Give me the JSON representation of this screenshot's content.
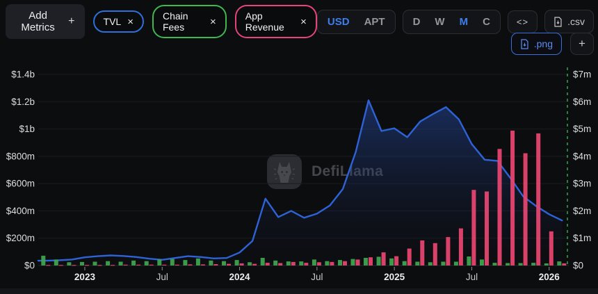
{
  "header": {
    "add_metrics": {
      "label": "Add Metrics",
      "plus_glyph": "+"
    },
    "close_glyph": "×",
    "metrics": [
      {
        "label": "TVL",
        "color": "#2f6fdb"
      },
      {
        "label": "Chain Fees",
        "color": "#3fb84f"
      },
      {
        "label": "App Revenue",
        "color": "#e7447a"
      }
    ],
    "currency_toggle": {
      "options": [
        "USD",
        "APT"
      ],
      "active": "USD"
    },
    "interval_toggle": {
      "options": [
        "D",
        "W",
        "M",
        "C"
      ],
      "active": "M"
    },
    "embed_label": "<>",
    "csv_label": ".csv",
    "png_label": ".png",
    "add_chart_glyph": "+"
  },
  "watermark": {
    "text": "DefiLlama"
  },
  "chart_data": {
    "type": "mixed-line-bar",
    "title": "",
    "x_unit": "month",
    "months": [
      "2022-10",
      "2022-11",
      "2022-12",
      "2023-01",
      "2023-02",
      "2023-03",
      "2023-04",
      "2023-05",
      "2023-06",
      "2023-07",
      "2023-08",
      "2023-09",
      "2023-10",
      "2023-11",
      "2023-12",
      "2024-01",
      "2024-02",
      "2024-03",
      "2024-04",
      "2024-05",
      "2024-06",
      "2024-07",
      "2024-08",
      "2024-09",
      "2024-10",
      "2024-11",
      "2024-12",
      "2025-01",
      "2025-02",
      "2025-03",
      "2025-04",
      "2025-05",
      "2025-06",
      "2025-07",
      "2025-08",
      "2025-09",
      "2025-10",
      "2025-11",
      "2025-12",
      "2026-01",
      "2026-02"
    ],
    "series": [
      {
        "name": "TVL",
        "type": "area-line",
        "axis": "left",
        "color": "#2e63d8",
        "values_musd": [
          35,
          38,
          44,
          60,
          68,
          74,
          70,
          62,
          50,
          42,
          55,
          68,
          62,
          52,
          55,
          95,
          180,
          490,
          355,
          400,
          350,
          380,
          440,
          560,
          830,
          1210,
          985,
          1005,
          940,
          1055,
          1110,
          1160,
          1070,
          890,
          775,
          766,
          640,
          505,
          435,
          375,
          330
        ]
      },
      {
        "name": "Chain Fees",
        "type": "bar",
        "axis": "right",
        "color": "#3fa34f",
        "values_musd": [
          0.36,
          0.22,
          0.12,
          0.13,
          0.14,
          0.16,
          0.14,
          0.18,
          0.16,
          0.22,
          0.24,
          0.2,
          0.26,
          0.18,
          0.16,
          0.2,
          0.12,
          0.28,
          0.18,
          0.15,
          0.15,
          0.22,
          0.16,
          0.2,
          0.24,
          0.28,
          0.32,
          0.26,
          0.16,
          0.14,
          0.12,
          0.14,
          0.14,
          0.33,
          0.22,
          0.1,
          0.09,
          0.09,
          0.1,
          0.08,
          0.15
        ]
      },
      {
        "name": "App Revenue",
        "type": "bar",
        "axis": "right",
        "color": "#e5456f",
        "values_musd": [
          0.02,
          0.02,
          0.02,
          0.02,
          0.02,
          0.02,
          0.03,
          0.03,
          0.03,
          0.03,
          0.03,
          0.04,
          0.04,
          0.05,
          0.06,
          0.08,
          0.06,
          0.1,
          0.09,
          0.13,
          0.1,
          0.12,
          0.13,
          0.16,
          0.22,
          0.3,
          0.48,
          0.34,
          0.62,
          0.92,
          0.82,
          1.04,
          1.36,
          2.77,
          2.71,
          4.27,
          4.94,
          4.11,
          4.84,
          1.25,
          0.08
        ]
      }
    ],
    "left_axis": {
      "ticks": [
        "$1.4b",
        "$1.2b",
        "$1b",
        "$800m",
        "$600m",
        "$400m",
        "$200m",
        "$0"
      ],
      "range_usd": [
        0,
        1400000000
      ]
    },
    "right_axis": {
      "ticks": [
        "$7m",
        "$6m",
        "$5m",
        "$4m",
        "$3m",
        "$2m",
        "$1m",
        "$0"
      ],
      "range_usd": [
        0,
        7000000
      ]
    },
    "x_ticks": [
      {
        "label": "2023",
        "month_index": 3,
        "bold": true
      },
      {
        "label": "Jul",
        "month_index": 9,
        "bold": false
      },
      {
        "label": "2024",
        "month_index": 15,
        "bold": true
      },
      {
        "label": "Jul",
        "month_index": 21,
        "bold": false
      },
      {
        "label": "2025",
        "month_index": 27,
        "bold": true
      },
      {
        "label": "Jul",
        "month_index": 33,
        "bold": false
      },
      {
        "label": "2026",
        "month_index": 39,
        "bold": true
      }
    ],
    "grid": true,
    "legend_position": "none",
    "current_marker": {
      "style": "dashed",
      "color": "#2f9e4f"
    }
  }
}
